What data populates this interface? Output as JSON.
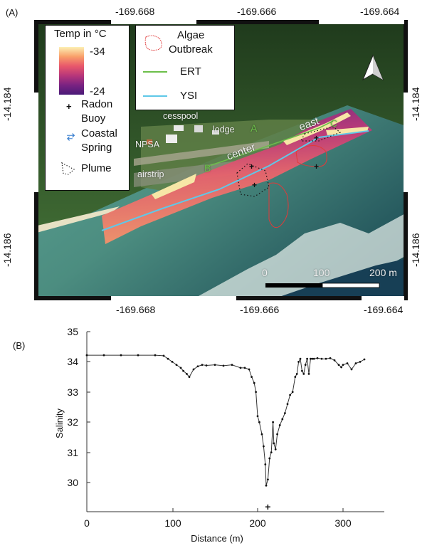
{
  "panel_a": {
    "label": "(A)",
    "top_ticks": [
      "-169.668",
      "-169.666",
      "-169.664"
    ],
    "bottom_ticks": [
      "-169.668",
      "-169.666",
      "-169.664"
    ],
    "left_ticks": [
      "-14.184",
      "-14.186"
    ],
    "right_ticks": [
      "-14.184",
      "-14.186"
    ],
    "legend_temp": {
      "title": "Temp in °C",
      "max_label": "-34",
      "min_label": "-24",
      "gradient_colors": [
        "#fcf0b4",
        "#f9a06a",
        "#e8586b",
        "#b8367a",
        "#7a2382",
        "#4a1a78"
      ]
    },
    "legend_items": {
      "radon": "Radon Buoy",
      "radon_line1": "Radon",
      "radon_line2": "Buoy",
      "spring_line1": "Coastal",
      "spring_line2": "Spring",
      "plume": "Plume"
    },
    "legend_lines": {
      "algae_line1": "Algae",
      "algae_line2": "Outbreak",
      "ert": "ERT",
      "ysi": "YSI",
      "ert_color": "#6cbf4a",
      "ysi_color": "#5fc8e8",
      "algae_color": "#e03a3a",
      "spring_color": "#3a7fd0"
    },
    "map_labels": {
      "cesspool": "cesspool",
      "lodge": "lodge",
      "npsa": "NPSA",
      "airstrip": "airstrip",
      "center": "center",
      "east": "east",
      "point_a": "A",
      "point_b": "B",
      "point_c": "C"
    },
    "scale_bar": {
      "labels": [
        "0",
        "100",
        "200 m"
      ]
    },
    "north_arrow": "north-arrow"
  },
  "panel_b": {
    "label": "(B)"
  },
  "chart_data": {
    "type": "line",
    "title": "",
    "xlabel": "Distance (m)",
    "ylabel": "Salinity",
    "xlim": [
      0,
      330
    ],
    "ylim": [
      29,
      35
    ],
    "xticks": [
      0,
      100,
      200,
      300
    ],
    "yticks": [
      30,
      31,
      32,
      33,
      34,
      35
    ],
    "grid": false,
    "series": [
      {
        "name": "Salinity",
        "marker": "dot",
        "x": [
          0,
          20,
          40,
          60,
          80,
          90,
          95,
          100,
          105,
          110,
          113,
          117,
          120,
          125,
          130,
          135,
          140,
          150,
          160,
          170,
          180,
          185,
          190,
          193,
          196,
          198,
          200,
          202,
          205,
          207,
          209,
          210,
          212,
          214,
          216,
          218,
          219,
          221,
          223,
          226,
          229,
          232,
          235,
          238,
          241,
          244,
          246,
          248,
          250,
          252,
          254,
          256,
          258,
          260,
          262,
          264,
          266,
          270,
          275,
          280,
          285,
          290,
          295,
          298,
          300,
          305,
          310,
          315,
          320,
          325
        ],
        "y": [
          34.22,
          34.22,
          34.22,
          34.22,
          34.22,
          34.2,
          34.1,
          34.0,
          33.9,
          33.8,
          33.7,
          33.6,
          33.5,
          33.75,
          33.85,
          33.9,
          33.88,
          33.9,
          33.87,
          33.9,
          33.8,
          33.8,
          33.75,
          33.5,
          33.3,
          33.0,
          32.2,
          32.0,
          31.6,
          31.2,
          30.6,
          29.9,
          30.1,
          30.8,
          31.0,
          32.0,
          31.3,
          31.1,
          31.6,
          31.9,
          32.1,
          32.3,
          32.6,
          32.9,
          33.0,
          33.5,
          33.6,
          34.0,
          34.1,
          33.7,
          33.6,
          33.9,
          34.1,
          33.6,
          34.1,
          34.1,
          34.1,
          34.12,
          34.1,
          34.1,
          34.12,
          34.05,
          33.9,
          33.82,
          33.9,
          33.95,
          33.75,
          33.95,
          34.0,
          34.08
        ]
      }
    ],
    "annotations": [
      {
        "type": "marker",
        "symbol": "+",
        "x": 212,
        "y": 29.2,
        "meaning": "Radon Buoy"
      }
    ]
  }
}
